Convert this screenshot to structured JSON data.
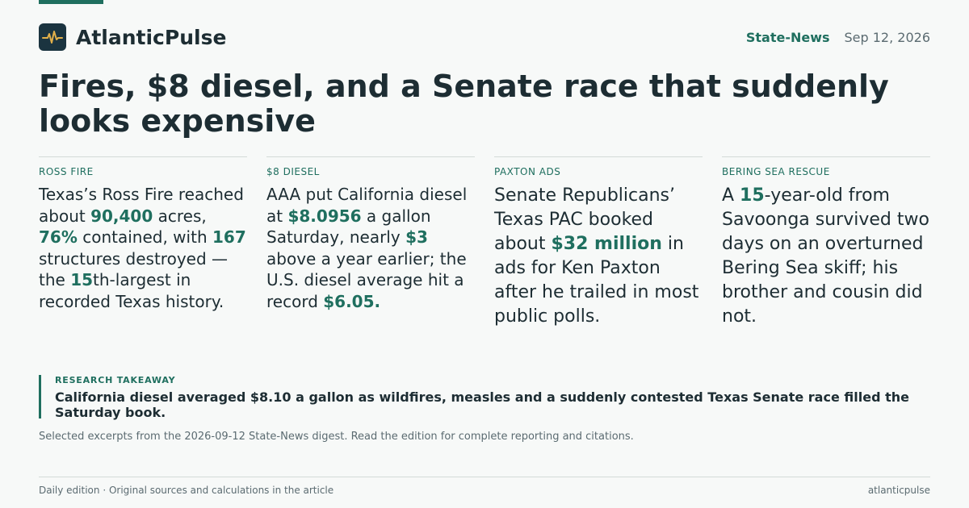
{
  "brand": {
    "name": "AtlanticPulse",
    "logo_icon": "pulse-icon",
    "logo_bg": "#1b3440",
    "logo_stroke": "#e2b04a"
  },
  "header": {
    "section": "State-News",
    "date": "Sep 12, 2026"
  },
  "headline": "Fires, $8 diesel, and a Senate race that suddenly looks expensive",
  "cards": [
    {
      "label": "ROSS FIRE",
      "parts": [
        {
          "t": "Texas’s Ross Fire reached about "
        },
        {
          "t": "90,400",
          "h": true
        },
        {
          "t": " acres, "
        },
        {
          "t": "76%",
          "h": true
        },
        {
          "t": " contained, with "
        },
        {
          "t": "167",
          "h": true
        },
        {
          "t": " structures destroyed — the "
        },
        {
          "t": "15",
          "h": true
        },
        {
          "t": "th-largest in recorded Texas history."
        }
      ]
    },
    {
      "label": "$8 DIESEL",
      "parts": [
        {
          "t": "AAA put California diesel at "
        },
        {
          "t": "$8.0956",
          "h": true
        },
        {
          "t": " a gallon Saturday, nearly "
        },
        {
          "t": "$3",
          "h": true
        },
        {
          "t": " above a year earlier; the U.S. diesel average hit a record "
        },
        {
          "t": "$6.05.",
          "h": true
        }
      ]
    },
    {
      "label": "PAXTON ADS",
      "parts": [
        {
          "t": "Senate Republicans’ Texas PAC booked about "
        },
        {
          "t": "$32 million",
          "h": true
        },
        {
          "t": " in ads for Ken Paxton after he trailed in most public polls."
        }
      ]
    },
    {
      "label": "BERING SEA RESCUE",
      "parts": [
        {
          "t": "A "
        },
        {
          "t": "15",
          "h": true
        },
        {
          "t": "-year-old from Savoonga survived two days on an overturned Bering Sea skiff; his brother and cousin did not."
        }
      ]
    }
  ],
  "takeaway": {
    "label": "RESEARCH TAKEAWAY",
    "text": "California diesel averaged $8.10 a gallon as wildfires, measles and a suddenly contested Texas Senate race filled the Saturday book."
  },
  "note": "Selected excerpts from the 2026-09-12 State-News digest. Read the edition for complete reporting and citations.",
  "footer": {
    "left": "Daily edition · Original sources and calculations in the article",
    "right": "atlanticpulse"
  },
  "colors": {
    "accent": "#1f6f5f",
    "text": "#1d2d33",
    "muted": "#5b6b71",
    "background": "#f7f9f8"
  }
}
